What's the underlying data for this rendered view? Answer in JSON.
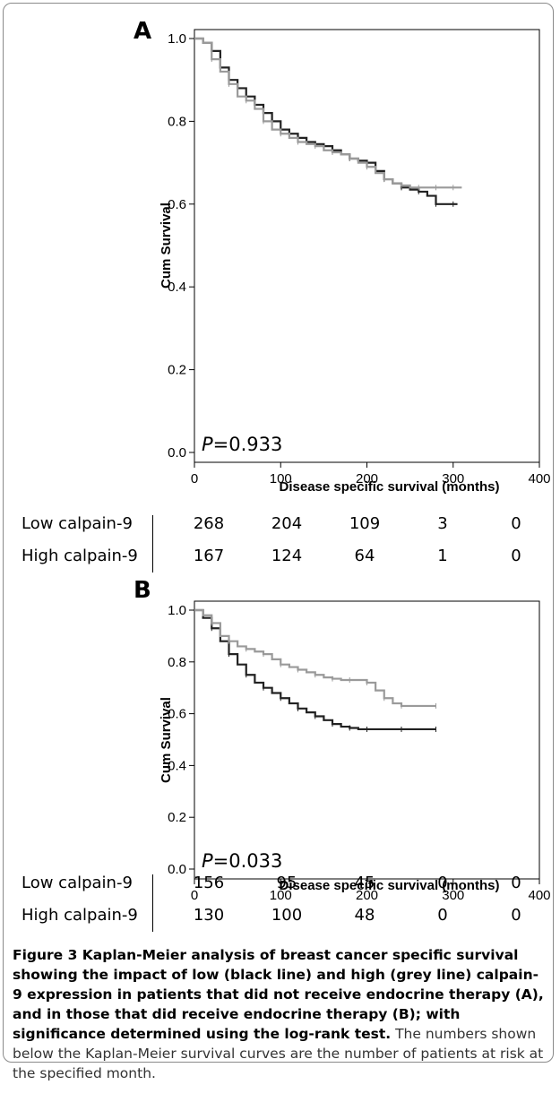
{
  "chart_data": [
    {
      "type": "line",
      "panel": "A",
      "ylabel": "Cum Survival",
      "xlabel": "Disease specific survival (months)",
      "xlim": [
        0,
        400
      ],
      "ylim": [
        0,
        1.0
      ],
      "x_ticks": [
        "0",
        "100",
        "200",
        "300",
        "400"
      ],
      "y_ticks": [
        "0.0",
        "0.2",
        "0.4",
        "0.6",
        "0.8",
        "1.0"
      ],
      "annotation": {
        "italic": "P",
        "text": "=0.933"
      },
      "series": [
        {
          "color": "#222222",
          "x": [
            0,
            10,
            20,
            30,
            40,
            50,
            60,
            70,
            80,
            90,
            100,
            110,
            120,
            130,
            140,
            150,
            160,
            170,
            180,
            190,
            200,
            210,
            220,
            230,
            240,
            250,
            260,
            270,
            280,
            290,
            300,
            305
          ],
          "y": [
            1.0,
            0.99,
            0.97,
            0.93,
            0.9,
            0.88,
            0.86,
            0.84,
            0.82,
            0.8,
            0.78,
            0.77,
            0.76,
            0.75,
            0.745,
            0.74,
            0.73,
            0.72,
            0.71,
            0.705,
            0.7,
            0.68,
            0.66,
            0.65,
            0.64,
            0.635,
            0.63,
            0.62,
            0.6,
            0.6,
            0.6,
            0.6
          ]
        },
        {
          "color": "#9a9a9a",
          "x": [
            0,
            10,
            20,
            30,
            40,
            50,
            60,
            70,
            80,
            90,
            100,
            110,
            120,
            130,
            140,
            150,
            160,
            170,
            180,
            190,
            200,
            210,
            220,
            230,
            240,
            250,
            260,
            270,
            280,
            290,
            300,
            310
          ],
          "y": [
            1.0,
            0.99,
            0.95,
            0.92,
            0.89,
            0.86,
            0.85,
            0.83,
            0.8,
            0.78,
            0.77,
            0.76,
            0.75,
            0.745,
            0.74,
            0.73,
            0.725,
            0.72,
            0.71,
            0.7,
            0.69,
            0.675,
            0.66,
            0.65,
            0.645,
            0.64,
            0.64,
            0.64,
            0.64,
            0.64,
            0.64,
            0.64
          ]
        }
      ]
    },
    {
      "type": "line",
      "panel": "B",
      "ylabel": "Cum Survival",
      "xlabel": "Disease specific survival (months)",
      "xlim": [
        0,
        400
      ],
      "ylim": [
        0,
        1.0
      ],
      "x_ticks": [
        "0",
        "100",
        "200",
        "300",
        "400"
      ],
      "y_ticks": [
        "0.0",
        "0.2",
        "0.4",
        "0.6",
        "0.8",
        "1.0"
      ],
      "annotation": {
        "italic": "P",
        "text": "=0.033"
      },
      "series": [
        {
          "color": "#222222",
          "x": [
            0,
            10,
            20,
            30,
            40,
            50,
            60,
            70,
            80,
            90,
            100,
            110,
            120,
            130,
            140,
            150,
            160,
            170,
            180,
            190,
            200,
            220,
            240,
            260,
            280
          ],
          "y": [
            1.0,
            0.97,
            0.93,
            0.88,
            0.83,
            0.79,
            0.75,
            0.72,
            0.7,
            0.68,
            0.66,
            0.64,
            0.62,
            0.605,
            0.59,
            0.575,
            0.56,
            0.55,
            0.545,
            0.54,
            0.54,
            0.54,
            0.54,
            0.54,
            0.54
          ]
        },
        {
          "color": "#9a9a9a",
          "x": [
            0,
            10,
            20,
            30,
            40,
            50,
            60,
            70,
            80,
            90,
            100,
            110,
            120,
            130,
            140,
            150,
            160,
            170,
            180,
            190,
            200,
            210,
            220,
            230,
            240,
            260,
            280
          ],
          "y": [
            1.0,
            0.98,
            0.95,
            0.9,
            0.88,
            0.86,
            0.85,
            0.84,
            0.83,
            0.81,
            0.79,
            0.78,
            0.77,
            0.76,
            0.75,
            0.74,
            0.735,
            0.73,
            0.73,
            0.73,
            0.72,
            0.69,
            0.66,
            0.64,
            0.63,
            0.63,
            0.63
          ]
        }
      ]
    }
  ],
  "risk_tables": [
    {
      "rows": [
        {
          "label": "Low calpain-9",
          "values": [
            "268",
            "204",
            "109",
            "3",
            "0"
          ]
        },
        {
          "label": "High calpain-9",
          "values": [
            "167",
            "124",
            "64",
            "1",
            "0"
          ]
        }
      ]
    },
    {
      "rows": [
        {
          "label": "Low calpain-9",
          "values": [
            "156",
            "95",
            "45",
            "0",
            "0"
          ]
        },
        {
          "label": "High calpain-9",
          "values": [
            "130",
            "100",
            "48",
            "0",
            "0"
          ]
        }
      ]
    }
  ],
  "caption": {
    "bold": "Figure 3 Kaplan-Meier analysis of breast cancer specific survival showing the impact of low (black line) and high (grey line) calpain-9 expression in patients that did not receive endocrine therapy (A), and in those that did receive endocrine therapy (B); with significance determined using the log-rank test.",
    "rest": " The numbers shown below the Kaplan-Meier survival curves are the number of patients at risk at the specified month."
  }
}
